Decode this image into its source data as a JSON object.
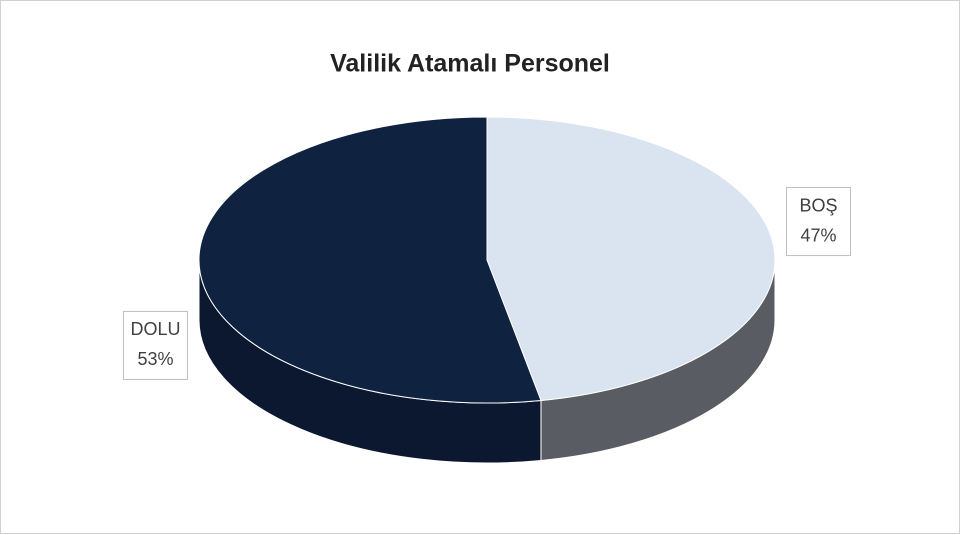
{
  "chart_data": {
    "type": "pie",
    "title": "Valilik Atamalı Personel",
    "categories": [
      "BOŞ",
      "DOLU"
    ],
    "values": [
      47,
      53
    ],
    "value_labels": [
      "47%",
      "53%"
    ],
    "colors": [
      "#dae3f0",
      "#0f2340"
    ],
    "side_colors": [
      "#595c62",
      "#0c1830"
    ]
  }
}
